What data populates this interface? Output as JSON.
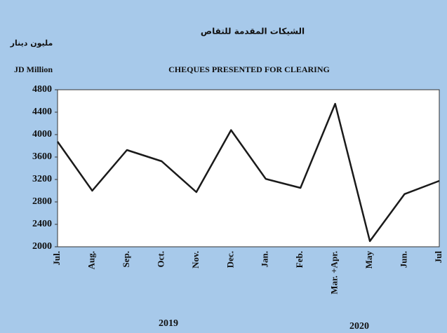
{
  "chart_data": {
    "type": "line",
    "title_ar": "الشيكات المقدمة للتقاص",
    "title": "CHEQUES PRESENTED FOR CLEARING",
    "unit_ar": "مليون دينار",
    "y_label": "JD Million",
    "categories": [
      "Jul.",
      "Aug.",
      "Sep.",
      "Oct.",
      "Nov.",
      "Dec.",
      "Jan.",
      "Feb.",
      "Mar. +Apr.",
      "May",
      "Jun.",
      "Jul"
    ],
    "values": [
      3875,
      3000,
      3725,
      3525,
      2975,
      4080,
      3210,
      3050,
      4550,
      2100,
      2940,
      3175
    ],
    "color": "#1a1a1a",
    "ylim": [
      2000,
      4800
    ],
    "yticks": [
      2000,
      2400,
      2800,
      3200,
      3600,
      4000,
      4400,
      4800
    ],
    "grid": false,
    "annotations": [
      "2019",
      "2020"
    ]
  }
}
